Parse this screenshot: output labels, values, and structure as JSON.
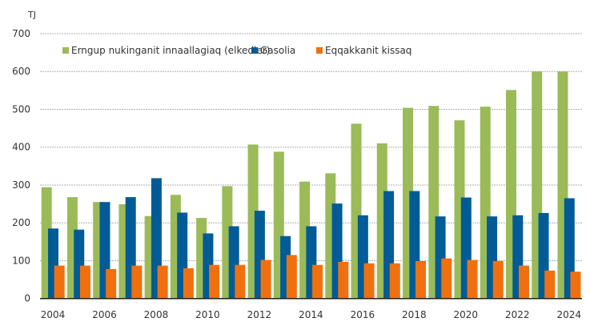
{
  "chart_data": {
    "type": "bar",
    "title": "",
    "ylabel": "TJ",
    "xlabel": "",
    "ylim": [
      0,
      700
    ],
    "y_ticks": [
      0,
      100,
      200,
      300,
      400,
      500,
      600,
      700
    ],
    "grid": true,
    "legend_position": "top",
    "categories": [
      "2004",
      "2005",
      "2006",
      "2007",
      "2008",
      "2009",
      "2010",
      "2011",
      "2012",
      "2013",
      "2014",
      "2015",
      "2016",
      "2017",
      "2018",
      "2019",
      "2020",
      "2021",
      "2022",
      "2023",
      "2024"
    ],
    "x_tick_labels": [
      "2004",
      "2006",
      "2008",
      "2010",
      "2012",
      "2014",
      "2016",
      "2018",
      "2020",
      "2022",
      "2024"
    ],
    "series": [
      {
        "name": "Erngup nukinganit innaallagiaq (elkedler)",
        "color": "#9BBB59",
        "values": [
          294,
          268,
          255,
          249,
          218,
          274,
          213,
          297,
          407,
          388,
          309,
          331,
          462,
          410,
          504,
          509,
          471,
          507,
          551,
          600,
          600
        ]
      },
      {
        "name": "Gasolia",
        "color": "#005B96",
        "values": [
          185,
          182,
          255,
          268,
          318,
          227,
          172,
          191,
          232,
          165,
          191,
          251,
          220,
          284,
          284,
          217,
          267,
          217,
          220,
          226,
          265
        ]
      },
      {
        "name": "Eqqakkanit kissaq",
        "color": "#F07010",
        "values": [
          87,
          87,
          78,
          87,
          87,
          80,
          89,
          89,
          102,
          115,
          89,
          97,
          93,
          93,
          99,
          106,
          102,
          99,
          87,
          74,
          71
        ]
      }
    ]
  }
}
